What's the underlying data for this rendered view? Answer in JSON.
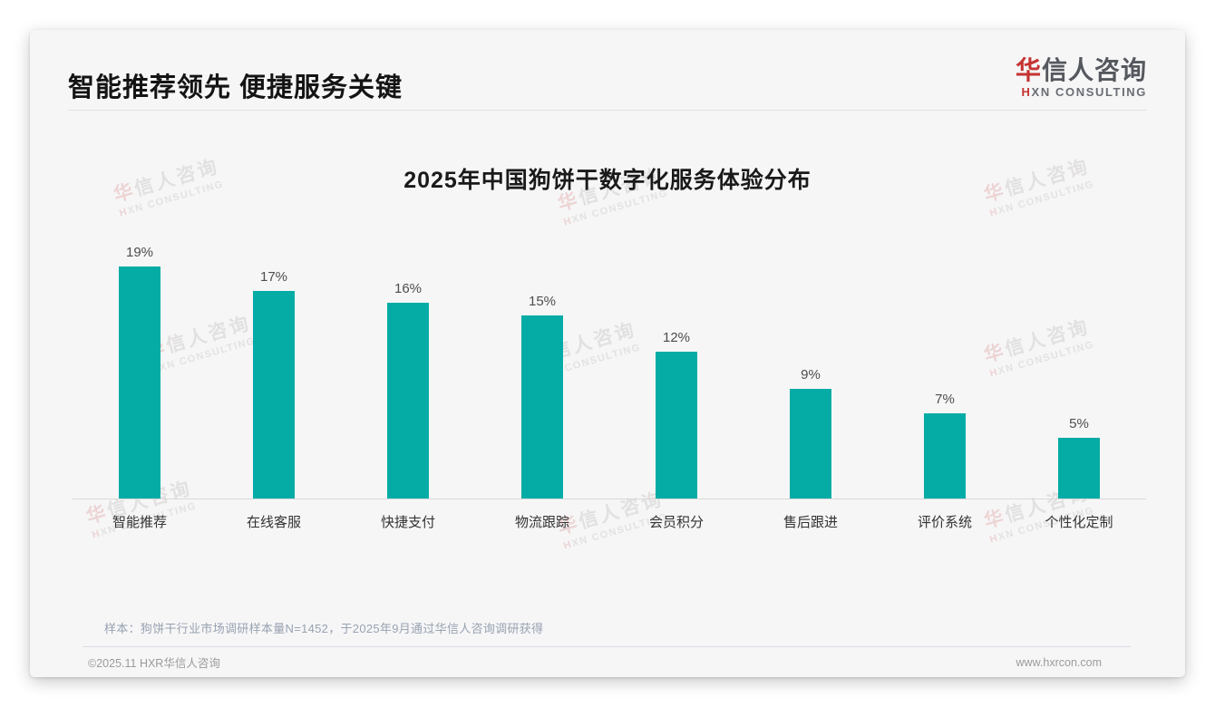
{
  "page": {
    "title": "智能推荐领先 便捷服务关键",
    "logo": {
      "cn_accent": "华",
      "cn_rest": "信人咨询",
      "en_accent": "H",
      "en_rest": "XN CONSULTING"
    },
    "watermark": {
      "cn": "华信人咨询",
      "en": "HXN CONSULTING"
    },
    "sample_note": "样本：狗饼干行业市场调研样本量N=1452，于2025年9月通过华信人咨询调研获得",
    "footer": {
      "copyright": "©2025.11 HXR华信人咨询",
      "website": "www.hxrcon.com"
    }
  },
  "chart_data": {
    "type": "bar",
    "title": "2025年中国狗饼干数字化服务体验分布",
    "categories": [
      "智能推荐",
      "在线客服",
      "快捷支付",
      "物流跟踪",
      "会员积分",
      "售后跟进",
      "评价系统",
      "个性化定制"
    ],
    "values": [
      19,
      17,
      16,
      15,
      12,
      9,
      7,
      5
    ],
    "value_labels": [
      "19%",
      "17%",
      "16%",
      "15%",
      "12%",
      "9%",
      "7%",
      "5%"
    ],
    "unit": "%",
    "bar_color": "#05ACA5",
    "ylim": [
      0,
      20
    ],
    "grid": false,
    "legend": false,
    "xlabel": "",
    "ylabel": ""
  }
}
